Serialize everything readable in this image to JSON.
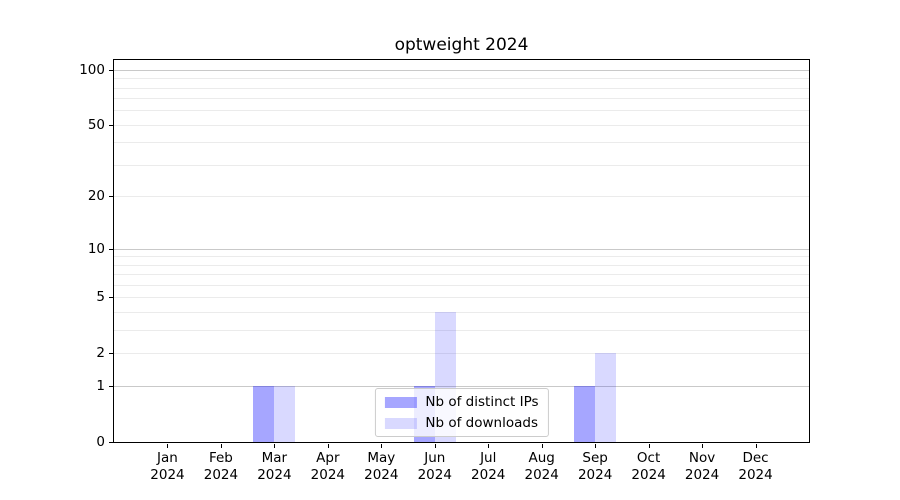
{
  "chart_data": {
    "type": "bar",
    "title": "optweight 2024",
    "categories": [
      "Jan 2024",
      "Feb 2024",
      "Mar 2024",
      "Apr 2024",
      "May 2024",
      "Jun 2024",
      "Jul 2024",
      "Aug 2024",
      "Sep 2024",
      "Oct 2024",
      "Nov 2024",
      "Dec 2024"
    ],
    "series": [
      {
        "name": "Nb of distinct IPs",
        "color": "rgba(0,0,255,0.35)",
        "values": [
          0,
          0,
          1,
          0,
          0,
          1,
          0,
          0,
          1,
          0,
          0,
          0
        ]
      },
      {
        "name": "Nb of downloads",
        "color": "rgba(0,0,255,0.15)",
        "values": [
          0,
          0,
          1,
          0,
          0,
          4,
          0,
          0,
          2,
          0,
          0,
          0
        ]
      }
    ],
    "xlabel": "",
    "ylabel": "",
    "yscale": "log1p",
    "ylim": [
      0,
      113
    ],
    "y_ticks": [
      0,
      1,
      2,
      5,
      10,
      20,
      50,
      100
    ],
    "y_major_gridlines": [
      1,
      10,
      100
    ],
    "y_minor_gridlines": [
      2,
      3,
      4,
      5,
      6,
      7,
      8,
      9,
      20,
      30,
      40,
      50,
      60,
      70,
      80,
      90
    ],
    "grid": true,
    "legend_position": "lower center"
  }
}
